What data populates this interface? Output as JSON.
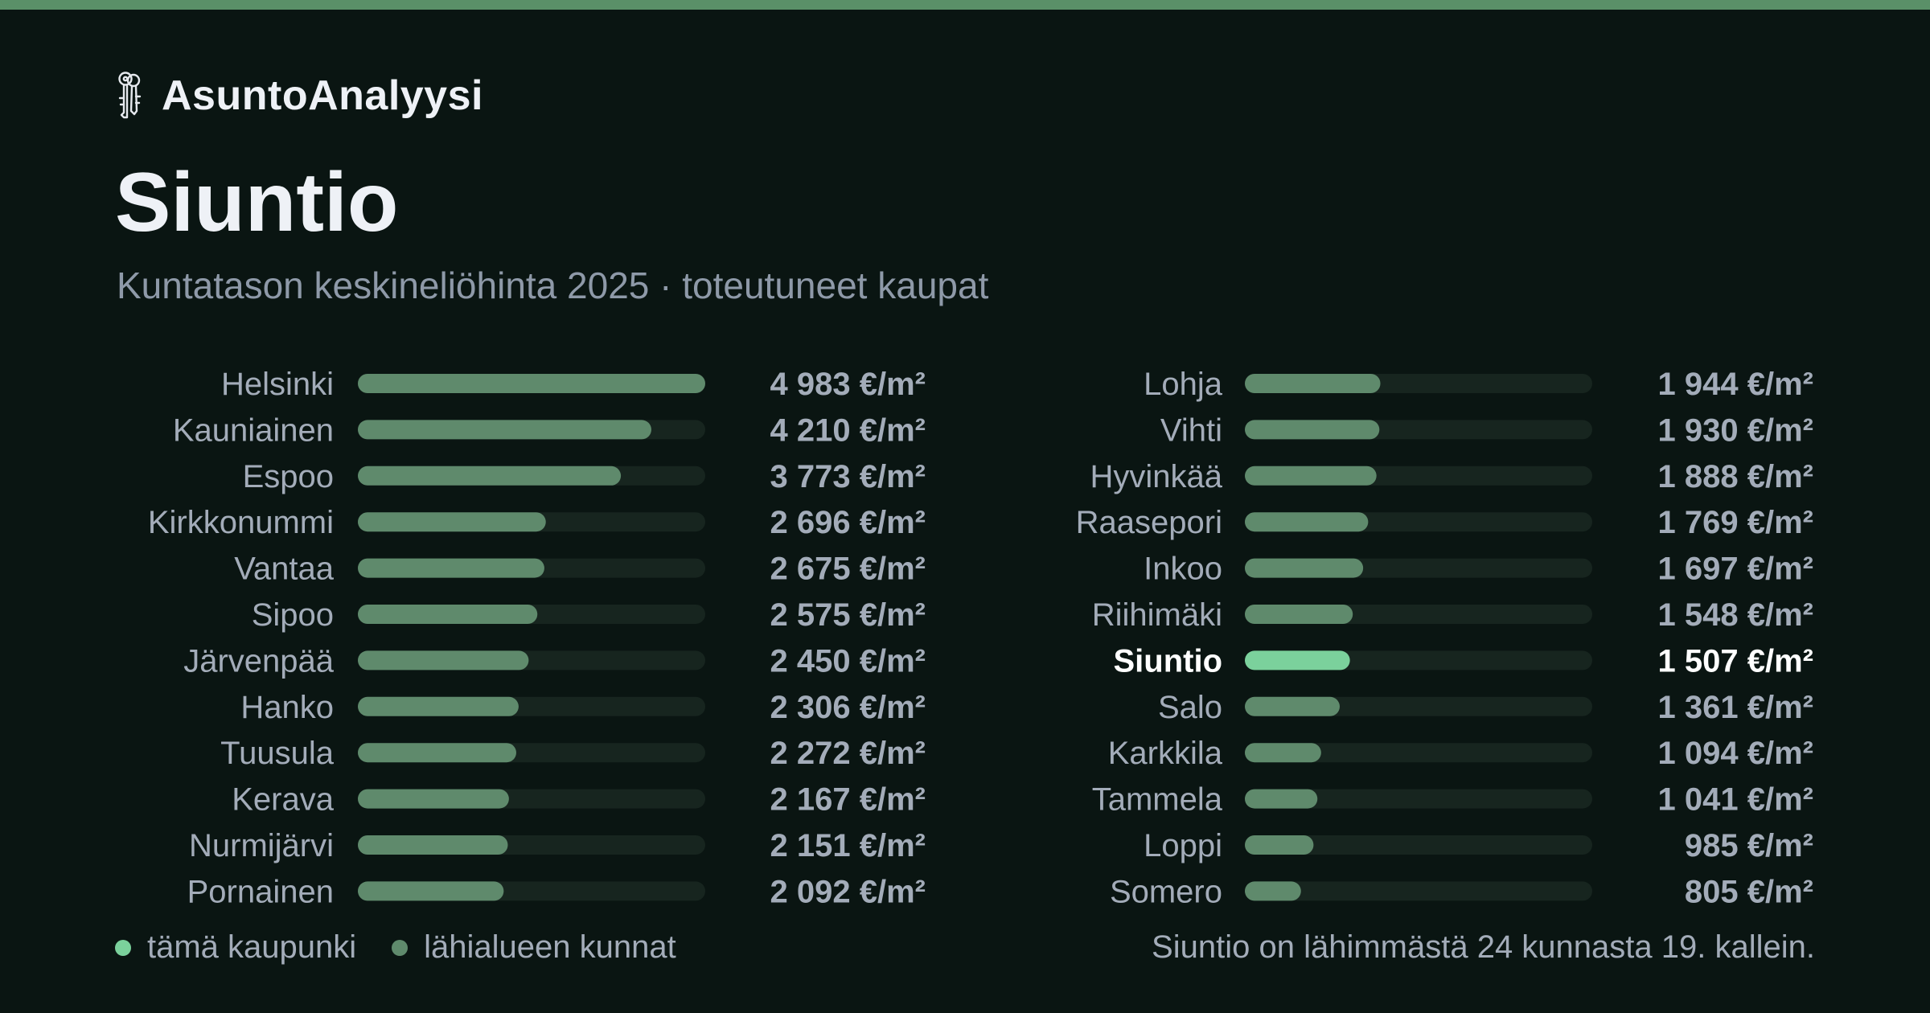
{
  "brand": {
    "name": "AsuntoAnalyysi",
    "icon": "keys-icon"
  },
  "title": "Siuntio",
  "subtitle": "Kuntatason keskineliöhinta 2025 · toteutuneet kaupat",
  "colors": {
    "background": "#0a1512",
    "accent_bar": "#5a9068",
    "bar_default": "#5f8a6c",
    "bar_highlight": "#7bd19c",
    "track": "#17251f",
    "label": "#a3acb9",
    "highlight_text": "#ffffff"
  },
  "chart_data": {
    "type": "bar",
    "orientation": "horizontal",
    "unit": "€/m²",
    "xlim": [
      0,
      4983
    ],
    "highlight": "Siuntio",
    "columns": [
      {
        "rows": [
          {
            "name": "Helsinki",
            "value": 4983,
            "label": "4 983 €/m²"
          },
          {
            "name": "Kauniainen",
            "value": 4210,
            "label": "4 210 €/m²"
          },
          {
            "name": "Espoo",
            "value": 3773,
            "label": "3 773 €/m²"
          },
          {
            "name": "Kirkkonummi",
            "value": 2696,
            "label": "2 696 €/m²"
          },
          {
            "name": "Vantaa",
            "value": 2675,
            "label": "2 675 €/m²"
          },
          {
            "name": "Sipoo",
            "value": 2575,
            "label": "2 575 €/m²"
          },
          {
            "name": "Järvenpää",
            "value": 2450,
            "label": "2 450 €/m²"
          },
          {
            "name": "Hanko",
            "value": 2306,
            "label": "2 306 €/m²"
          },
          {
            "name": "Tuusula",
            "value": 2272,
            "label": "2 272 €/m²"
          },
          {
            "name": "Kerava",
            "value": 2167,
            "label": "2 167 €/m²"
          },
          {
            "name": "Nurmijärvi",
            "value": 2151,
            "label": "2 151 €/m²"
          },
          {
            "name": "Pornainen",
            "value": 2092,
            "label": "2 092 €/m²"
          }
        ]
      },
      {
        "rows": [
          {
            "name": "Lohja",
            "value": 1944,
            "label": "1 944 €/m²"
          },
          {
            "name": "Vihti",
            "value": 1930,
            "label": "1 930 €/m²"
          },
          {
            "name": "Hyvinkää",
            "value": 1888,
            "label": "1 888 €/m²"
          },
          {
            "name": "Raasepori",
            "value": 1769,
            "label": "1 769 €/m²"
          },
          {
            "name": "Inkoo",
            "value": 1697,
            "label": "1 697 €/m²"
          },
          {
            "name": "Riihimäki",
            "value": 1548,
            "label": "1 548 €/m²"
          },
          {
            "name": "Siuntio",
            "value": 1507,
            "label": "1 507 €/m²"
          },
          {
            "name": "Salo",
            "value": 1361,
            "label": "1 361 €/m²"
          },
          {
            "name": "Karkkila",
            "value": 1094,
            "label": "1 094 €/m²"
          },
          {
            "name": "Tammela",
            "value": 1041,
            "label": "1 041 €/m²"
          },
          {
            "name": "Loppi",
            "value": 985,
            "label": "985 €/m²"
          },
          {
            "name": "Somero",
            "value": 805,
            "label": "805 €/m²"
          }
        ]
      }
    ]
  },
  "legend": {
    "this_city": "tämä kaupunki",
    "nearby": "lähialueen kunnat"
  },
  "footnote": "Siuntio on lähimmästä 24 kunnasta 19. kallein."
}
